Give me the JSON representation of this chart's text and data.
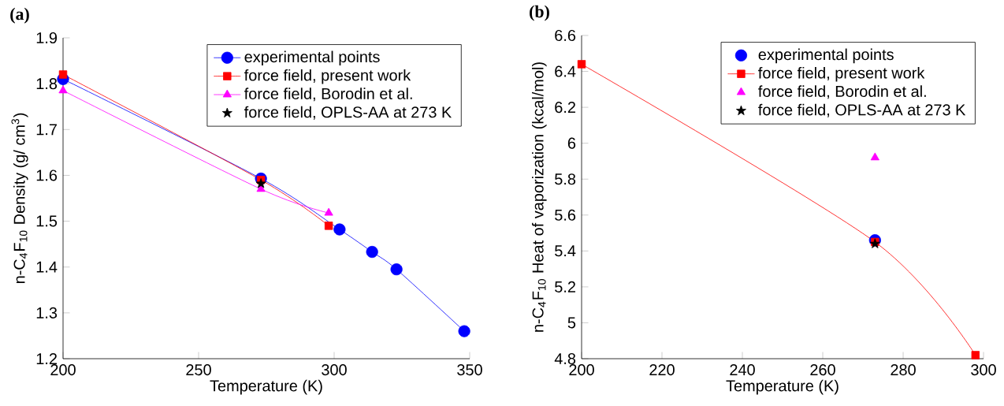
{
  "chart_data": [
    {
      "type": "line",
      "title": "(a)",
      "xlabel": "Temperature (K)",
      "ylabel": "n-C$_{4}$F$_{10}$  Density (g/ cm$^{3}$)",
      "xlim": [
        200,
        350
      ],
      "ylim": [
        1.2,
        1.9
      ],
      "xticks": [
        200,
        250,
        300,
        350
      ],
      "yticks": [
        1.2,
        1.3,
        1.4,
        1.5,
        1.6,
        1.7,
        1.8,
        1.9
      ],
      "legend": "top right",
      "grid": false,
      "series": [
        {
          "name": "experimental points",
          "type": "line",
          "marker": "circle",
          "color": "#0000ff",
          "x": [
            200,
            273,
            302,
            314,
            323,
            348
          ],
          "values": [
            1.81,
            1.593,
            1.482,
            1.433,
            1.395,
            1.26
          ]
        },
        {
          "name": "force field, present work",
          "type": "line",
          "marker": "square",
          "color": "#ff0000",
          "x": [
            200,
            273,
            298
          ],
          "values": [
            1.82,
            1.59,
            1.49
          ]
        },
        {
          "name": "force field, Borodin et al.",
          "type": "line",
          "marker": "triangle",
          "color": "#ff00ff",
          "x": [
            200,
            273,
            298
          ],
          "values": [
            1.785,
            1.57,
            1.518
          ]
        },
        {
          "name": "force field, OPLS-AA at 273 K",
          "type": "scatter",
          "marker": "star",
          "color": "#000000",
          "x": [
            273
          ],
          "values": [
            1.582
          ]
        }
      ]
    },
    {
      "type": "line",
      "title": "(b)",
      "xlabel": "Temperature (K)",
      "ylabel": "n-C$_{4}$F$_{10}$  Heat of vaporization  (kcal/mol)",
      "xlim": [
        200,
        300
      ],
      "ylim": [
        4.8,
        6.6
      ],
      "xticks": [
        200,
        220,
        240,
        260,
        280,
        300
      ],
      "yticks": [
        4.8,
        5,
        5.2,
        5.4,
        5.6,
        5.8,
        6,
        6.2,
        6.4,
        6.6
      ],
      "legend": "top right",
      "grid": false,
      "series": [
        {
          "name": "experimental points",
          "type": "scatter",
          "marker": "circle",
          "color": "#0000ff",
          "x": [
            273
          ],
          "values": [
            5.46
          ]
        },
        {
          "name": "force field, present work",
          "type": "line",
          "marker": "square",
          "color": "#ff0000",
          "x": [
            200,
            273,
            298
          ],
          "values": [
            6.44,
            5.45,
            4.82
          ]
        },
        {
          "name": "force field, Borodin et al.",
          "type": "scatter",
          "marker": "triangle",
          "color": "#ff00ff",
          "x": [
            273
          ],
          "values": [
            5.92
          ]
        },
        {
          "name": "force field, OPLS-AA at 273 K",
          "type": "scatter",
          "marker": "star",
          "color": "#000000",
          "x": [
            273
          ],
          "values": [
            5.44
          ]
        }
      ]
    }
  ]
}
